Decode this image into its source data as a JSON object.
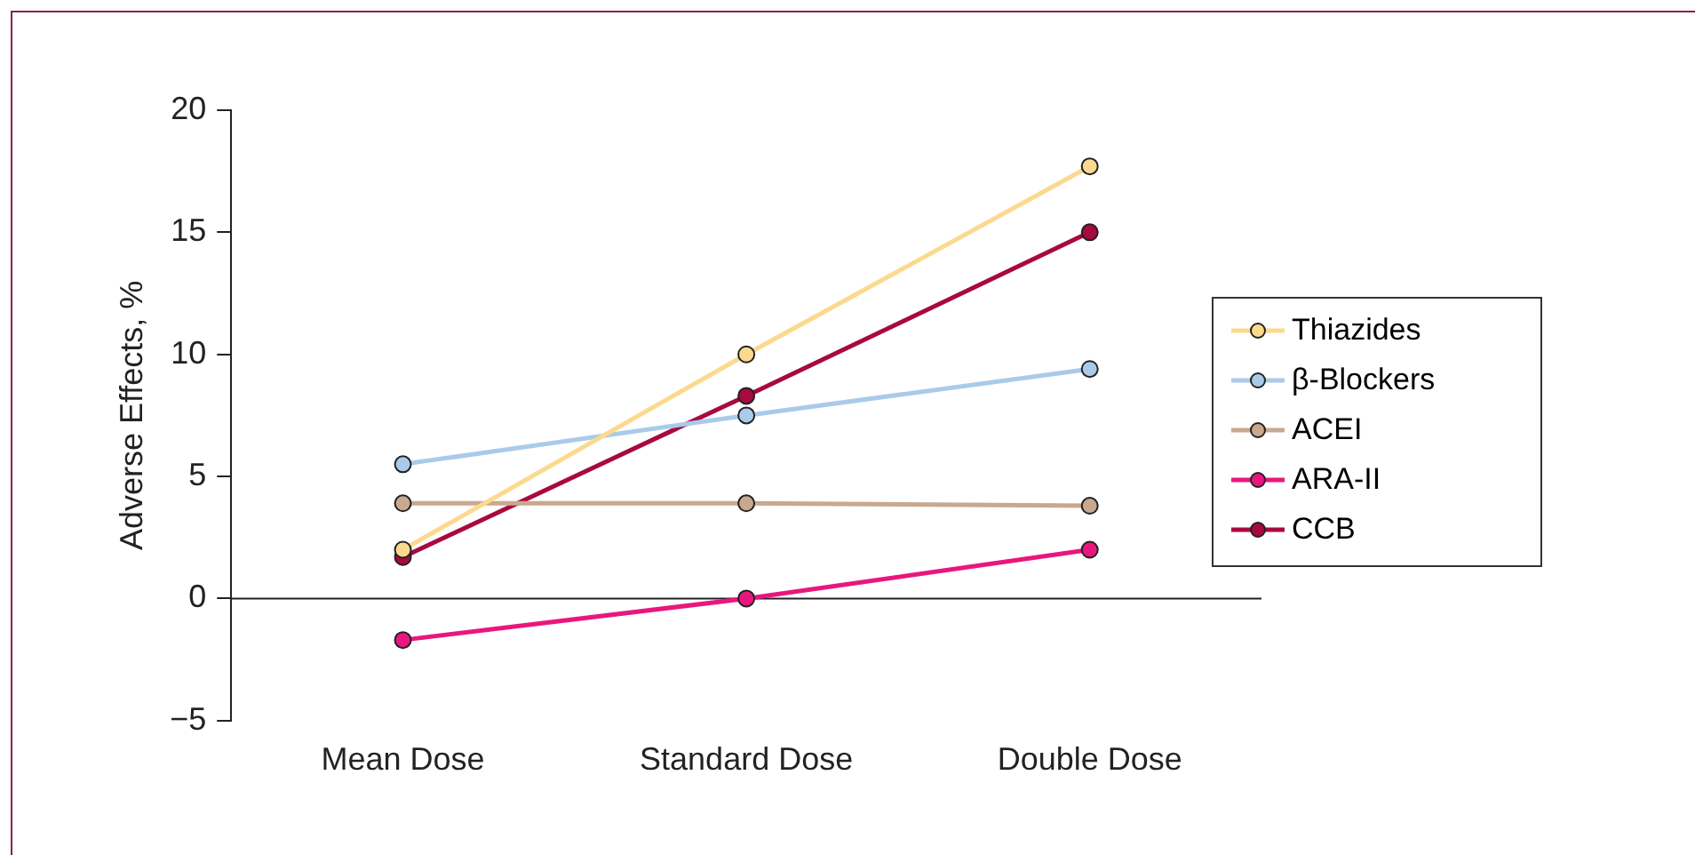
{
  "chart_data": {
    "type": "line",
    "ylabel": "Adverse Effects, %",
    "categories": [
      "Mean Dose",
      "Standard Dose",
      "Double Dose"
    ],
    "series": [
      {
        "name": "Thiazides",
        "color": "#fbd98e",
        "values": [
          2.0,
          10.0,
          17.7
        ]
      },
      {
        "name": "β-Blockers",
        "color": "#a9cbe9",
        "values": [
          5.5,
          7.5,
          9.4
        ]
      },
      {
        "name": "ACEI",
        "color": "#c8a88f",
        "values": [
          3.9,
          3.9,
          3.8
        ]
      },
      {
        "name": "ARA-II",
        "color": "#e8177e",
        "values": [
          -1.7,
          0.0,
          2.0
        ]
      },
      {
        "name": "CCB",
        "color": "#a8093e",
        "values": [
          1.7,
          8.3,
          15.0
        ]
      }
    ],
    "ylim": [
      -5,
      20
    ],
    "yticks": [
      {
        "value": -5,
        "label": "−5"
      },
      0,
      5,
      10,
      15,
      20
    ],
    "grid": false,
    "ref_lines": [
      {
        "axis": "y",
        "value": 0,
        "color": "#222222"
      }
    ],
    "legend": "right",
    "marker": "circle",
    "line_style": "solid"
  }
}
